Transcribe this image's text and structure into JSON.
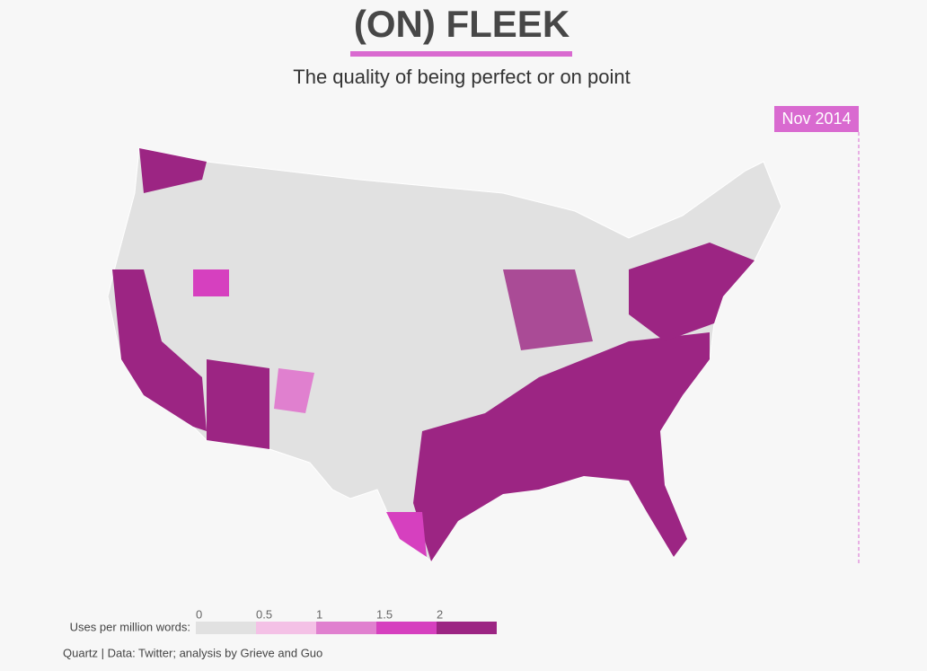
{
  "header": {
    "title": "(ON) FLEEK",
    "subtitle": "The quality of being perfect or on point"
  },
  "timeline": {
    "date": "Nov 2014"
  },
  "legend": {
    "label": "Uses per million words:",
    "ticks": [
      0,
      0.5,
      1,
      1.5,
      2
    ],
    "colors": [
      "#e1e1e1",
      "#f4c1e6",
      "#e080cf",
      "#d640bf",
      "#9c2583"
    ]
  },
  "footer": {
    "source": "Quartz | Data: Twitter; analysis by Grieve and Guo"
  }
}
